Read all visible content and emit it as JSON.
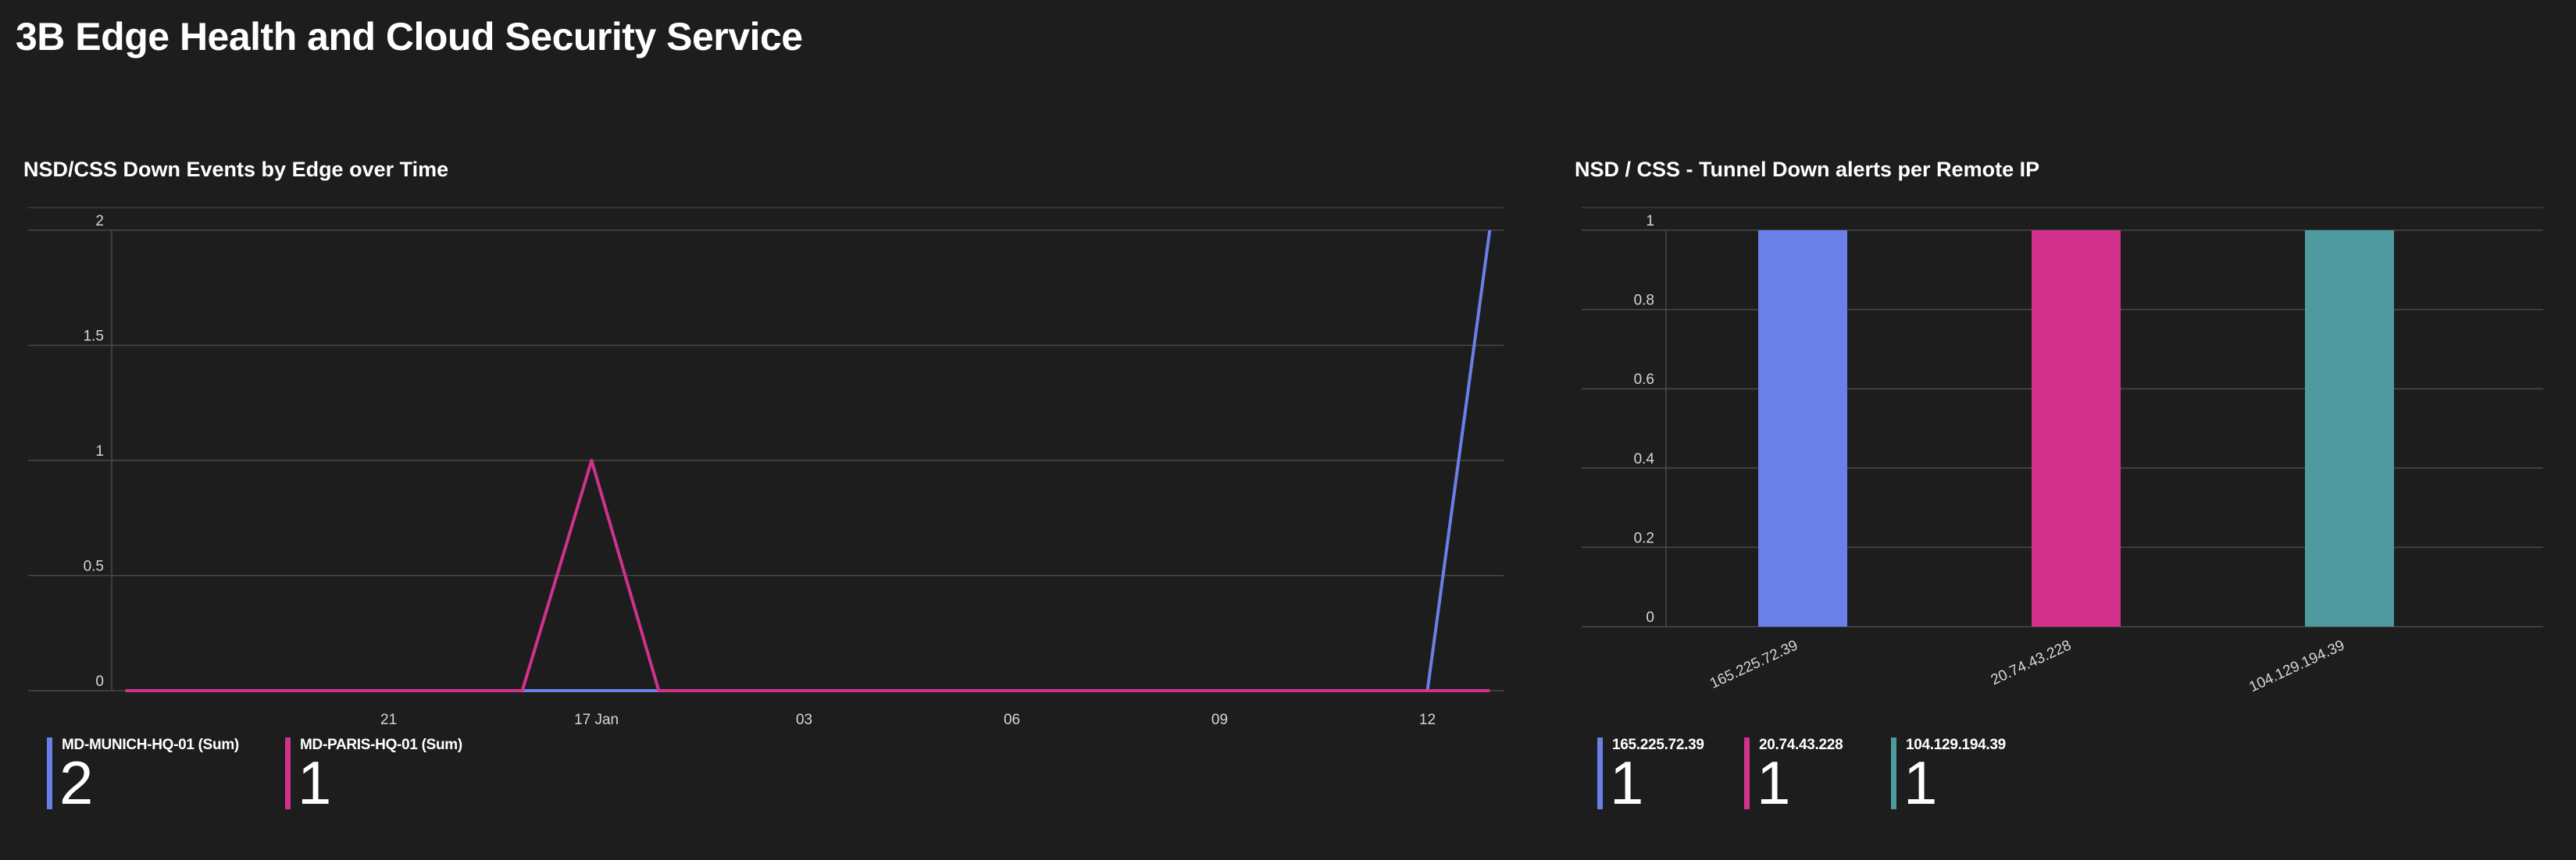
{
  "page": {
    "title": "3B Edge Health and Cloud Security Service"
  },
  "line_panel": {
    "title": "NSD/CSS Down Events by Edge over Time",
    "legend": [
      {
        "label": "MD-MUNICH-HQ-01 (Sum)",
        "value": "2",
        "color": "#6b7fe8"
      },
      {
        "label": "MD-PARIS-HQ-01 (Sum)",
        "value": "1",
        "color": "#d2318c"
      }
    ]
  },
  "bar_panel": {
    "title": "NSD / CSS - Tunnel Down alerts per Remote IP",
    "legend": [
      {
        "label": "165.225.72.39",
        "value": "1",
        "color": "#6b7fe8"
      },
      {
        "label": "20.74.43.228",
        "value": "1",
        "color": "#d2318c"
      },
      {
        "label": "104.129.194.39",
        "value": "1",
        "color": "#4f9a9e"
      }
    ]
  },
  "chart_data": [
    {
      "type": "line",
      "title": "NSD/CSS Down Events by Edge over Time",
      "xlabel": "",
      "ylabel": "",
      "x_tick_labels": [
        "21",
        "17 Jan",
        "03",
        "06",
        "09",
        "12"
      ],
      "x_tick_positions": [
        3,
        6,
        9,
        12,
        15,
        18
      ],
      "ylim": [
        0,
        2
      ],
      "y_ticks": [
        "0",
        "0.5",
        "1",
        "1.5",
        "2"
      ],
      "y_tick_values": [
        0,
        0.5,
        1,
        1.5,
        2
      ],
      "x_range": [
        -1,
        19.1
      ],
      "grid": true,
      "series": [
        {
          "name": "MD-MUNICH-HQ-01 (Sum)",
          "color": "#6b7fe8",
          "x": [
            -0.8,
            18.0,
            18.9
          ],
          "y": [
            0,
            0,
            2
          ]
        },
        {
          "name": "MD-PARIS-HQ-01 (Sum)",
          "color": "#d2318c",
          "x": [
            -0.8,
            4.93,
            5.93,
            6.9,
            18.9
          ],
          "y": [
            0,
            0,
            1,
            0,
            0
          ]
        }
      ]
    },
    {
      "type": "bar",
      "title": "NSD / CSS - Tunnel Down alerts per Remote IP",
      "xlabel": "",
      "ylabel": "",
      "categories": [
        "165.225.72.39",
        "20.74.43.228",
        "104.129.194.39"
      ],
      "values": [
        1,
        1,
        1
      ],
      "colors": [
        "#6b7fe8",
        "#d2318c",
        "#4f9a9e"
      ],
      "ylim": [
        0,
        1
      ],
      "y_ticks": [
        "0",
        "0.2",
        "0.4",
        "0.6",
        "0.8",
        "1"
      ],
      "y_tick_values": [
        0,
        0.2,
        0.4,
        0.6,
        0.8,
        1
      ],
      "grid": true
    }
  ]
}
